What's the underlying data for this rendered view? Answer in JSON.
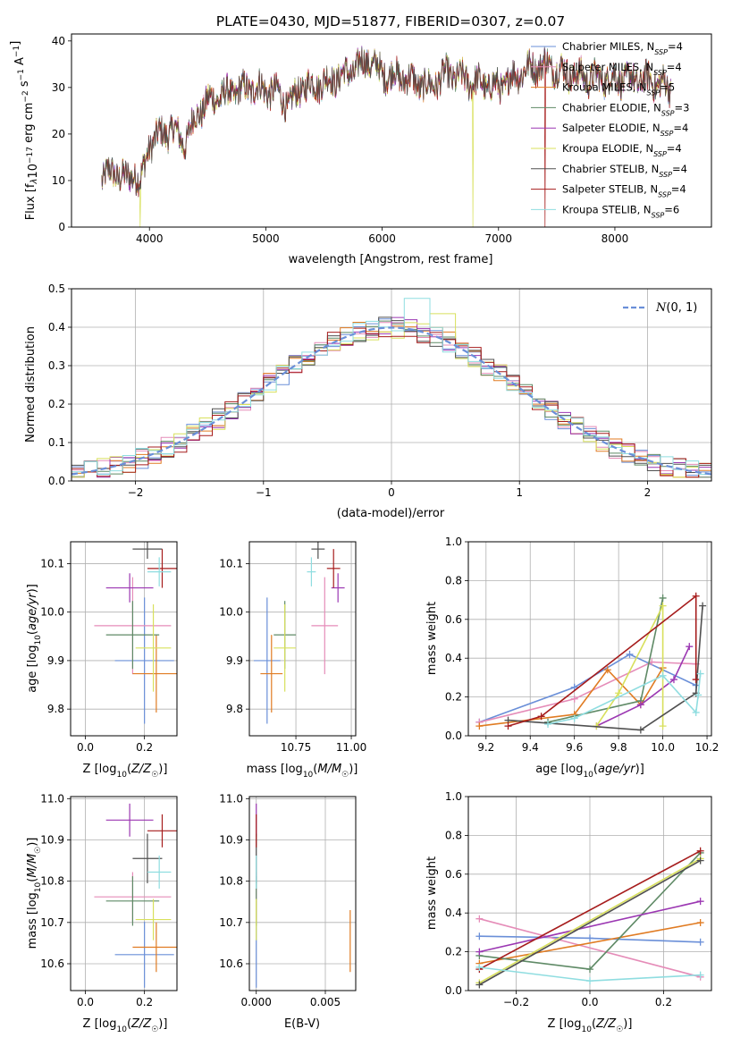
{
  "series_colors": [
    "#6a8fd8",
    "#e58cb8",
    "#e07b22",
    "#5f8a66",
    "#9b37b2",
    "#d8e05c",
    "#505050",
    "#a61c1c",
    "#8fdde0"
  ],
  "legend": [
    {
      "label": "Chabrier MILES, N",
      "sub": "SSP",
      "tail": "=4"
    },
    {
      "label": "Salpeter MILES, N",
      "sub": "SSP",
      "tail": "=4"
    },
    {
      "label": "Kroupa MILES, N",
      "sub": "SSP",
      "tail": "=5"
    },
    {
      "label": "Chabrier ELODIE, N",
      "sub": "SSP",
      "tail": "=3"
    },
    {
      "label": "Salpeter ELODIE, N",
      "sub": "SSP",
      "tail": "=4"
    },
    {
      "label": "Kroupa ELODIE, N",
      "sub": "SSP",
      "tail": "=4"
    },
    {
      "label": "Chabrier STELIB, N",
      "sub": "SSP",
      "tail": "=4"
    },
    {
      "label": "Salpeter STELIB, N",
      "sub": "SSP",
      "tail": "=4"
    },
    {
      "label": "Kroupa STELIB, N",
      "sub": "SSP",
      "tail": "=6"
    }
  ],
  "chart_data": [
    {
      "type": "line",
      "title": "PLATE=0430, MJD=51877, FIBERID=0307, z=0.07",
      "xlabel": "wavelength [Angstrom, rest frame]",
      "ylabel": "Flux [f_λ 10^-17 erg cm^-2 s^-1 A^-1]",
      "ylabel_parts": {
        "a": "Flux [f",
        "b": "λ",
        "c": "10",
        "d": "−17",
        "e": " erg cm",
        "f": "−2",
        "g": " s",
        "h": "−1",
        "i": " A",
        "j": "−1",
        "k": "]"
      },
      "xlim": [
        3330,
        8830
      ],
      "ylim": [
        0,
        41.5
      ],
      "xticks": [
        4000,
        5000,
        6000,
        7000,
        8000
      ],
      "yticks": [
        0,
        10,
        20,
        30,
        40
      ],
      "spectrum_knots": [
        [
          3590,
          10.5
        ],
        [
          3700,
          12
        ],
        [
          3800,
          10
        ],
        [
          3870,
          12
        ],
        [
          3920,
          9
        ],
        [
          4000,
          18
        ],
        [
          4100,
          20
        ],
        [
          4200,
          21
        ],
        [
          4300,
          18
        ],
        [
          4400,
          24
        ],
        [
          4500,
          27
        ],
        [
          4700,
          29
        ],
        [
          4900,
          30
        ],
        [
          5100,
          29
        ],
        [
          5200,
          26
        ],
        [
          5300,
          30
        ],
        [
          5500,
          31
        ],
        [
          5700,
          33
        ],
        [
          5880,
          36
        ],
        [
          6000,
          33
        ],
        [
          6200,
          32
        ],
        [
          6400,
          30
        ],
        [
          6560,
          33
        ],
        [
          6800,
          31
        ],
        [
          7000,
          30
        ],
        [
          7200,
          33.5
        ],
        [
          7400,
          35
        ],
        [
          7600,
          33
        ],
        [
          7800,
          32
        ],
        [
          8000,
          32
        ],
        [
          8300,
          31.5
        ],
        [
          8480,
          30
        ]
      ],
      "drops": [
        {
          "series": 5,
          "x": 3920
        },
        {
          "series": 5,
          "x": 6780
        },
        {
          "series": 7,
          "x": 7400
        }
      ],
      "end_x": [
        8480,
        8480,
        8480,
        8480,
        8480,
        8480,
        8480,
        8480,
        8480
      ]
    },
    {
      "type": "histogram",
      "xlabel": "(data-model)/error",
      "ylabel": "Normed distribution",
      "xlim": [
        -2.5,
        2.5
      ],
      "ylim": [
        0,
        0.5
      ],
      "xticks": [
        -2,
        -1,
        0,
        1,
        2
      ],
      "xtick_labels": [
        "−2",
        "−1",
        "0",
        "1",
        "2"
      ],
      "yticks": [
        0,
        0.1,
        0.2,
        0.3,
        0.4,
        0.5
      ],
      "bin_width": 0.1,
      "reference_curve": {
        "name": "N(0,1)",
        "display": "(0, 1)",
        "mean": 0,
        "sigma": 1
      },
      "peak_outliers": [
        {
          "series": 8,
          "x": 0.2,
          "y": 0.475
        },
        {
          "series": 5,
          "x": 0.4,
          "y": 0.435
        }
      ]
    },
    {
      "type": "scatter",
      "xlabel": "Z [log10(Z/Z☉)]",
      "ylabel": "age  [log10(age/yr)]",
      "xlim": [
        -0.05,
        0.31
      ],
      "ylim": [
        9.745,
        10.145
      ],
      "xticks": [
        0.0,
        0.2
      ],
      "xtick_labels": [
        "0.0",
        "0.2"
      ],
      "yticks": [
        9.8,
        9.9,
        10.0,
        10.1
      ],
      "ytick_labels": [
        "9.8",
        "9.9",
        "10.0",
        "10.1"
      ],
      "points": [
        {
          "x": 0.2,
          "y": 9.9,
          "xe": 0.1,
          "ye": 0.13
        },
        {
          "x": 0.16,
          "y": 9.972,
          "xe": 0.13,
          "ye": 0.1
        },
        {
          "x": 0.24,
          "y": 9.873,
          "xe": 0.08,
          "ye": 0.08
        },
        {
          "x": 0.16,
          "y": 9.953,
          "xe": 0.09,
          "ye": 0.07
        },
        {
          "x": 0.15,
          "y": 10.05,
          "xe": 0.08,
          "ye": 0.03
        },
        {
          "x": 0.23,
          "y": 9.926,
          "xe": 0.06,
          "ye": 0.09
        },
        {
          "x": 0.21,
          "y": 10.13,
          "xe": 0.05,
          "ye": 0.02
        },
        {
          "x": 0.26,
          "y": 10.09,
          "xe": 0.05,
          "ye": 0.04
        },
        {
          "x": 0.25,
          "y": 10.083,
          "xe": 0.04,
          "ye": 0.03
        }
      ]
    },
    {
      "type": "scatter",
      "xlabel": "mass [log10(M/M☉)]",
      "ylabel": "",
      "xlim": [
        10.54,
        11.02
      ],
      "ylim": [
        9.745,
        10.145
      ],
      "xticks": [
        10.75,
        11.0
      ],
      "xtick_labels": [
        "10.75",
        "11.00"
      ],
      "yticks": [
        9.8,
        9.9,
        10.0,
        10.1
      ],
      "ytick_labels": [
        "9.8",
        "9.9",
        "10.0",
        "10.1"
      ],
      "points": [
        {
          "x": 10.62,
          "y": 9.9,
          "xe": 0.06,
          "ye": 0.13
        },
        {
          "x": 10.88,
          "y": 9.972,
          "xe": 0.06,
          "ye": 0.1
        },
        {
          "x": 10.64,
          "y": 9.873,
          "xe": 0.05,
          "ye": 0.08
        },
        {
          "x": 10.7,
          "y": 9.953,
          "xe": 0.05,
          "ye": 0.07
        },
        {
          "x": 10.94,
          "y": 10.05,
          "xe": 0.03,
          "ye": 0.03
        },
        {
          "x": 10.7,
          "y": 9.926,
          "xe": 0.05,
          "ye": 0.09
        },
        {
          "x": 10.85,
          "y": 10.13,
          "xe": 0.03,
          "ye": 0.02
        },
        {
          "x": 10.92,
          "y": 10.09,
          "xe": 0.03,
          "ye": 0.04
        },
        {
          "x": 10.82,
          "y": 10.083,
          "xe": 0.02,
          "ye": 0.03
        }
      ]
    },
    {
      "type": "line",
      "xlabel": "age  [log10(age/yr)]",
      "ylabel": "mass weight",
      "xlim": [
        9.12,
        10.22
      ],
      "ylim": [
        0,
        1.0
      ],
      "xticks": [
        9.2,
        9.4,
        9.6,
        9.8,
        10.0,
        10.2
      ],
      "xtick_labels": [
        "9.2",
        "9.4",
        "9.6",
        "9.8",
        "10.0",
        "10.2"
      ],
      "yticks": [
        0,
        0.2,
        0.4,
        0.6,
        0.8,
        1.0
      ],
      "ytick_labels": [
        "0.0",
        "0.2",
        "0.4",
        "0.6",
        "0.8",
        "1.0"
      ],
      "series": [
        {
          "x": [
            9.17,
            9.6,
            9.85,
            10.15
          ],
          "y": [
            0.07,
            0.25,
            0.42,
            0.26
          ]
        },
        {
          "x": [
            9.17,
            9.6,
            9.95,
            10.15
          ],
          "y": [
            0.07,
            0.19,
            0.38,
            0.37
          ]
        },
        {
          "x": [
            9.17,
            9.6,
            9.75,
            9.9,
            10.0
          ],
          "y": [
            0.05,
            0.11,
            0.34,
            0.16,
            0.35
          ]
        },
        {
          "x": [
            9.48,
            9.9,
            10.0
          ],
          "y": [
            0.07,
            0.18,
            0.71
          ]
        },
        {
          "x": [
            9.7,
            9.9,
            10.05,
            10.12
          ],
          "y": [
            0.05,
            0.16,
            0.29,
            0.46
          ]
        },
        {
          "x": [
            9.7,
            9.8,
            10.0,
            10.0
          ],
          "y": [
            0.05,
            0.22,
            0.67,
            0.05
          ]
        },
        {
          "x": [
            9.3,
            9.9,
            10.15,
            10.18
          ],
          "y": [
            0.08,
            0.03,
            0.22,
            0.67
          ]
        },
        {
          "x": [
            9.3,
            9.45,
            10.15,
            10.15
          ],
          "y": [
            0.05,
            0.1,
            0.72,
            0.29
          ]
        },
        {
          "x": [
            9.48,
            9.6,
            10.0,
            10.15,
            10.16,
            10.17
          ],
          "y": [
            0.06,
            0.09,
            0.31,
            0.12,
            0.21,
            0.32
          ]
        }
      ]
    },
    {
      "type": "scatter",
      "xlabel": "Z [log10(Z/Z☉)]",
      "ylabel": "mass [log10(M/M☉)]",
      "xlim": [
        -0.05,
        0.31
      ],
      "ylim": [
        10.535,
        11.005
      ],
      "xticks": [
        0.0,
        0.2
      ],
      "xtick_labels": [
        "0.0",
        "0.2"
      ],
      "yticks": [
        10.6,
        10.7,
        10.8,
        10.9,
        11.0
      ],
      "ytick_labels": [
        "10.6",
        "10.7",
        "10.8",
        "10.9",
        "11.0"
      ],
      "points": [
        {
          "x": 0.2,
          "y": 10.622,
          "xe": 0.1,
          "ye": 0.08
        },
        {
          "x": 0.16,
          "y": 10.762,
          "xe": 0.13,
          "ye": 0.06
        },
        {
          "x": 0.24,
          "y": 10.64,
          "xe": 0.08,
          "ye": 0.06
        },
        {
          "x": 0.16,
          "y": 10.752,
          "xe": 0.09,
          "ye": 0.06
        },
        {
          "x": 0.15,
          "y": 10.948,
          "xe": 0.08,
          "ye": 0.04
        },
        {
          "x": 0.23,
          "y": 10.707,
          "xe": 0.06,
          "ye": 0.05
        },
        {
          "x": 0.21,
          "y": 10.855,
          "xe": 0.05,
          "ye": 0.06
        },
        {
          "x": 0.26,
          "y": 10.922,
          "xe": 0.05,
          "ye": 0.04
        },
        {
          "x": 0.25,
          "y": 10.822,
          "xe": 0.04,
          "ye": 0.04
        }
      ]
    },
    {
      "type": "scatter",
      "xlabel": "E(B-V)",
      "ylabel": "",
      "xlim": [
        -0.0005,
        0.0072
      ],
      "ylim": [
        10.535,
        11.005
      ],
      "xticks": [
        0.0,
        0.005
      ],
      "xtick_labels": [
        "0.000",
        "0.005"
      ],
      "yticks": [
        10.6,
        10.7,
        10.8,
        10.9,
        11.0
      ],
      "ytick_labels": [
        "10.6",
        "10.7",
        "10.8",
        "10.9",
        "11.0"
      ],
      "points": [
        {
          "x": 0.0,
          "y": 10.622,
          "xe": 0,
          "ye": 0.08
        },
        {
          "x": 0.0,
          "y": 10.762,
          "xe": 0,
          "ye": 0.06
        },
        {
          "x": 0.0068,
          "y": 10.655,
          "xe": 0,
          "ye": 0.075
        },
        {
          "x": 0.0,
          "y": 10.752,
          "xe": 0,
          "ye": 0.06
        },
        {
          "x": 0.0,
          "y": 10.948,
          "xe": 0,
          "ye": 0.04
        },
        {
          "x": 0.0,
          "y": 10.707,
          "xe": 0,
          "ye": 0.05
        },
        {
          "x": 0.0,
          "y": 10.855,
          "xe": 0,
          "ye": 0.06
        },
        {
          "x": 0.0,
          "y": 10.922,
          "xe": 0,
          "ye": 0.04
        },
        {
          "x": 0.0,
          "y": 10.822,
          "xe": 0,
          "ye": 0.04
        }
      ]
    },
    {
      "type": "line",
      "xlabel": "Z [log10(Z/Z☉)]",
      "ylabel": "mass weight",
      "xlim": [
        -0.33,
        0.33
      ],
      "ylim": [
        0,
        1.0
      ],
      "xticks": [
        -0.2,
        0.0,
        0.2
      ],
      "xtick_labels": [
        "−0.2",
        "0.0",
        "0.2"
      ],
      "yticks": [
        0,
        0.2,
        0.4,
        0.6,
        0.8,
        1.0
      ],
      "ytick_labels": [
        "0.0",
        "0.2",
        "0.4",
        "0.6",
        "0.8",
        "1.0"
      ],
      "series": [
        {
          "x": [
            -0.3,
            0.0,
            0.3
          ],
          "y": [
            0.28,
            0.27,
            0.25
          ]
        },
        {
          "x": [
            -0.3,
            0.3
          ],
          "y": [
            0.37,
            0.07
          ]
        },
        {
          "x": [
            -0.3,
            0.3
          ],
          "y": [
            0.14,
            0.35
          ]
        },
        {
          "x": [
            -0.3,
            0.0,
            0.3
          ],
          "y": [
            0.18,
            0.11,
            0.71
          ]
        },
        {
          "x": [
            -0.3,
            0.3
          ],
          "y": [
            0.2,
            0.46
          ]
        },
        {
          "x": [
            -0.3,
            0.3
          ],
          "y": [
            0.04,
            0.68
          ]
        },
        {
          "x": [
            -0.3,
            0.3
          ],
          "y": [
            0.03,
            0.67
          ]
        },
        {
          "x": [
            -0.3,
            0.3
          ],
          "y": [
            0.11,
            0.72
          ]
        },
        {
          "x": [
            -0.3,
            0.0,
            0.3
          ],
          "y": [
            0.12,
            0.05,
            0.08
          ]
        }
      ]
    }
  ]
}
